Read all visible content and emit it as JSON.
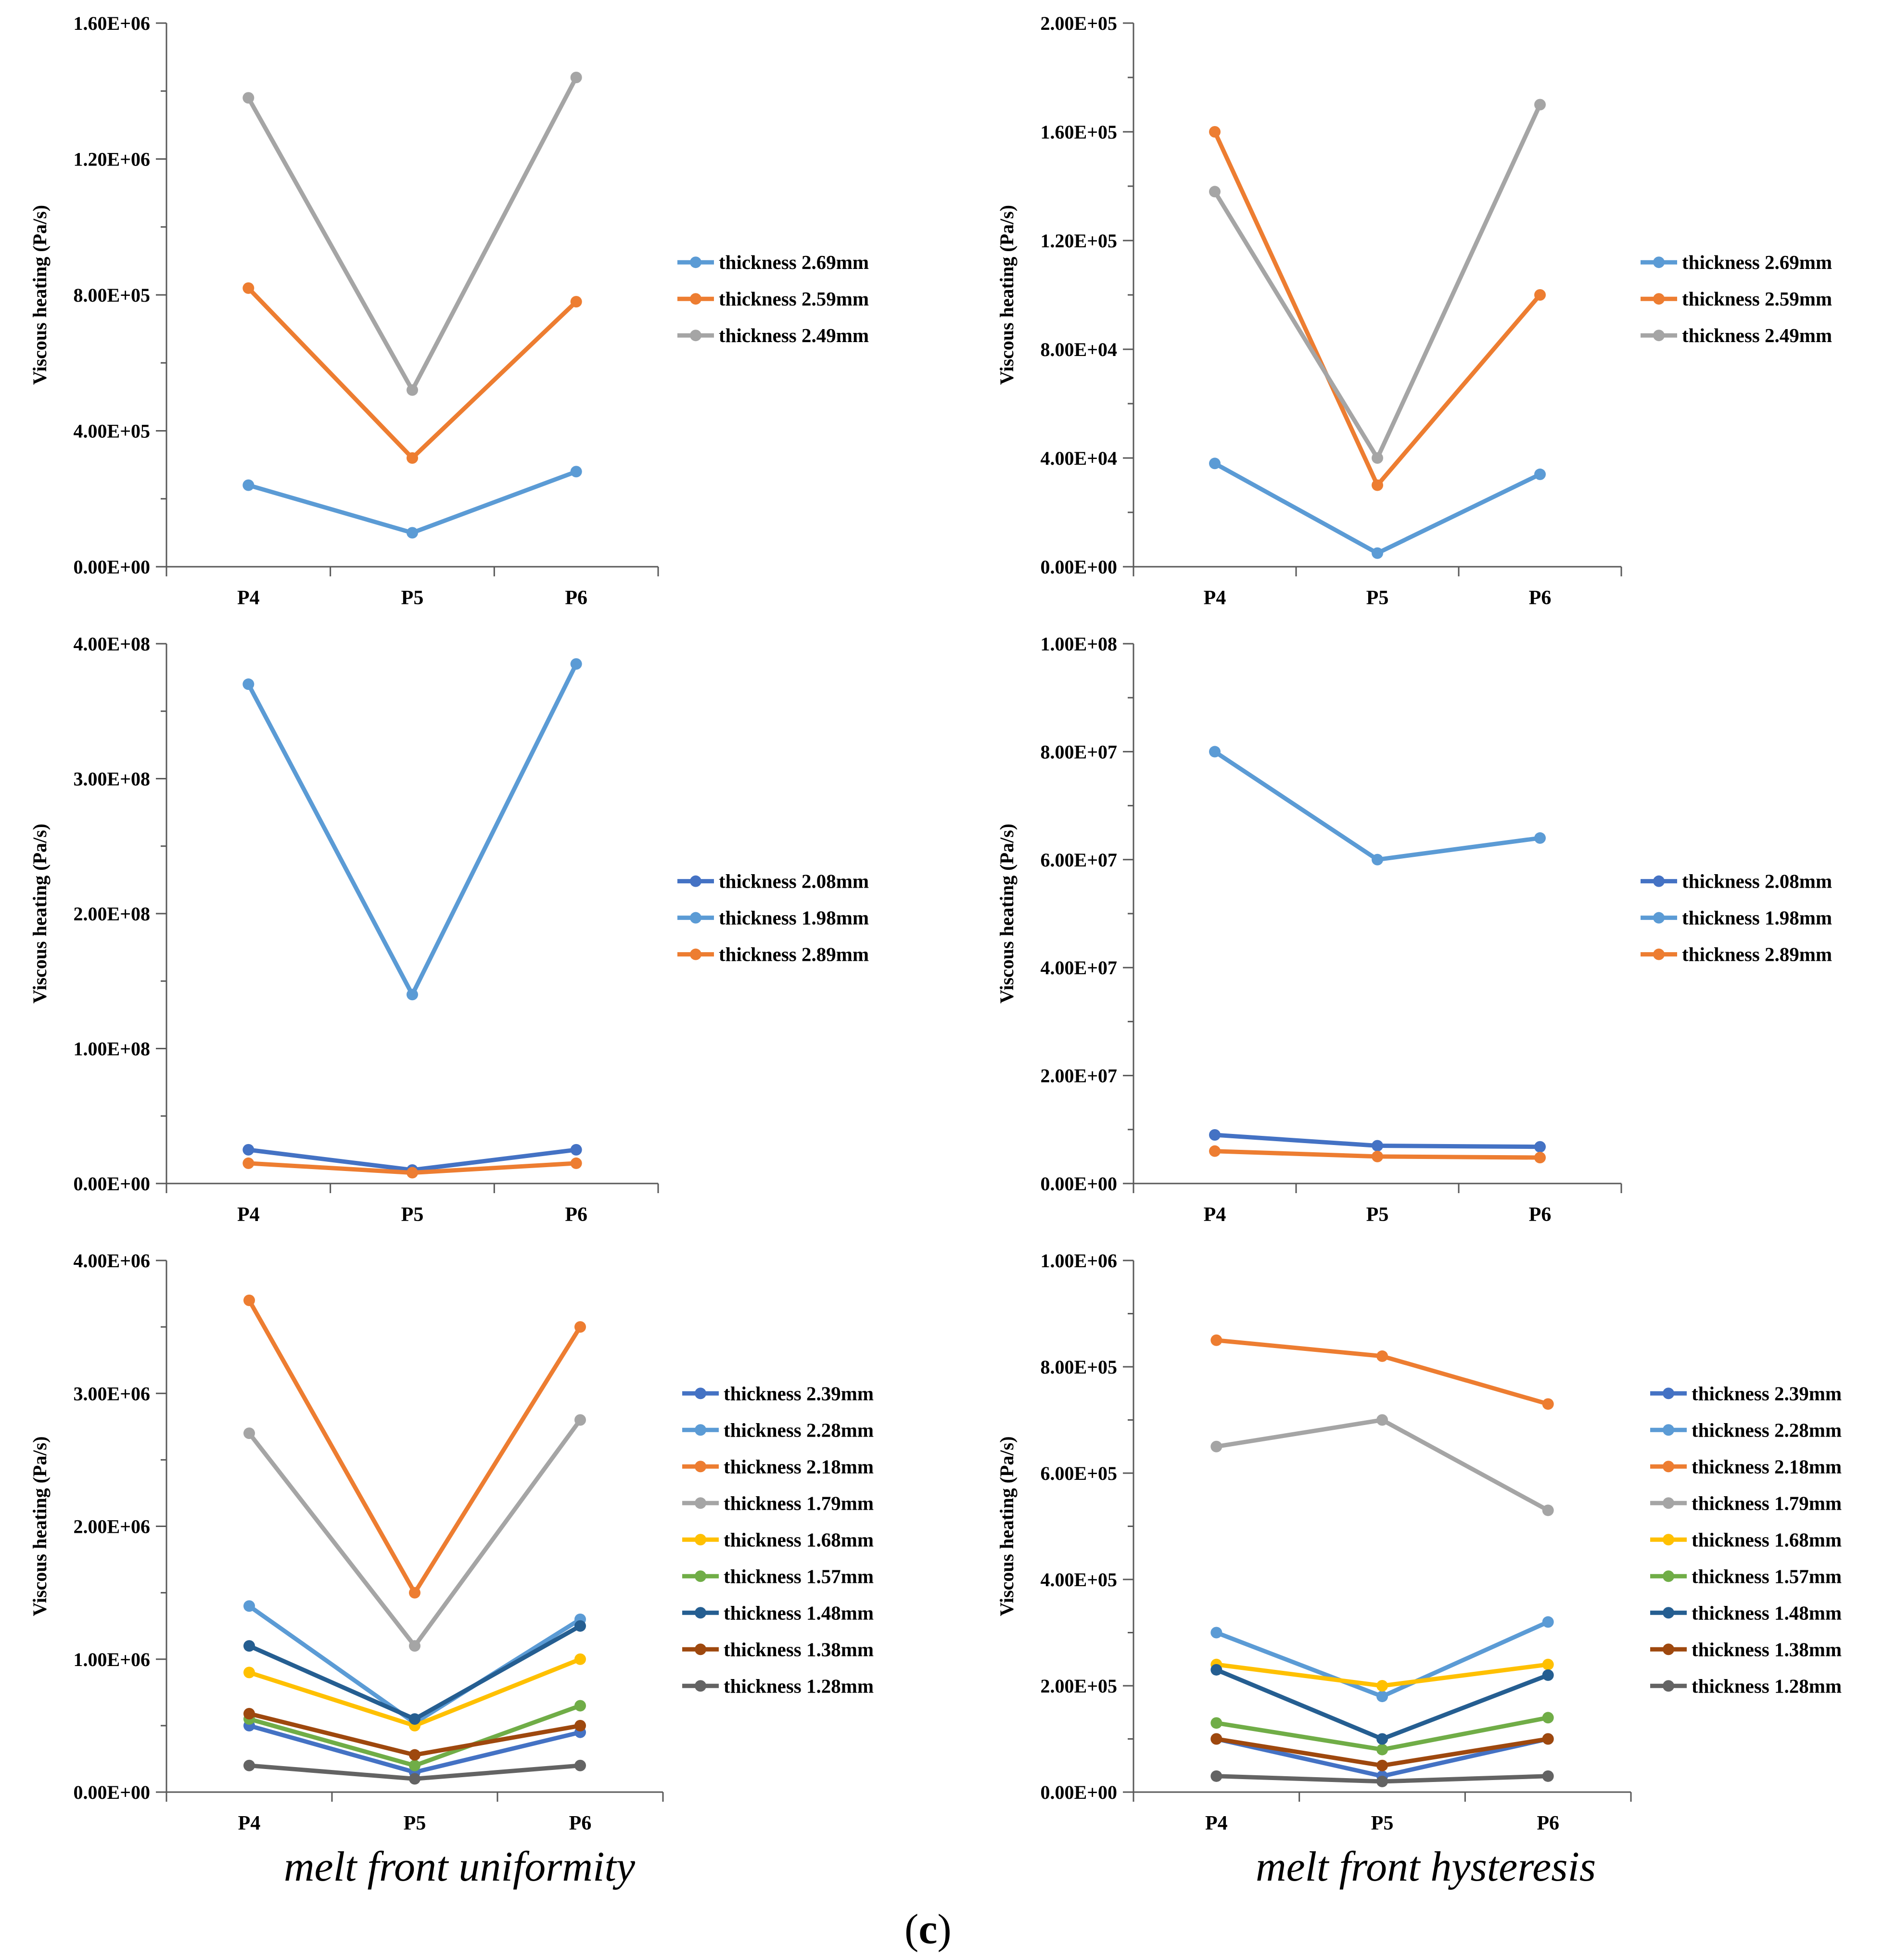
{
  "figure_label": {
    "open": "(",
    "letter": "c",
    "close": ")"
  },
  "captions": {
    "left": "melt front uniformity",
    "right": "melt front hysteresis"
  },
  "colors": {
    "2.69": "#5b9bd5",
    "2.59": "#ed7d31",
    "2.49": "#a5a5a5",
    "2.08": "#4472c4",
    "1.98": "#5b9bd5",
    "2.89": "#ed7d31",
    "2.39": "#4472c4",
    "2.28": "#5b9bd5",
    "2.18": "#ed7d31",
    "1.79": "#a5a5a5",
    "1.68": "#ffc000",
    "1.57": "#70ad47",
    "1.48": "#255e91",
    "1.38": "#9e480e",
    "1.28": "#636363"
  },
  "chart_data": [
    {
      "type": "line",
      "panel": "top-left",
      "ylabel": "Viscous heating (Pa/s)",
      "categories": [
        "P4",
        "P5",
        "P6"
      ],
      "ylim": [
        0,
        1600000
      ],
      "yticks": [
        "0.00E+00",
        "4.00E+05",
        "8.00E+05",
        "1.20E+06",
        "1.60E+06"
      ],
      "series": [
        {
          "name": "thickness 2.69mm",
          "color": "#5b9bd5",
          "values": [
            240000,
            100000,
            280000
          ]
        },
        {
          "name": "thickness 2.59mm",
          "color": "#ed7d31",
          "values": [
            820000,
            320000,
            780000
          ]
        },
        {
          "name": "thickness 2.49mm",
          "color": "#a5a5a5",
          "values": [
            1380000,
            520000,
            1440000
          ]
        }
      ]
    },
    {
      "type": "line",
      "panel": "top-right",
      "ylabel": "Viscous heating (Pa/s)",
      "categories": [
        "P4",
        "P5",
        "P6"
      ],
      "ylim": [
        0,
        200000
      ],
      "yticks": [
        "0.00E+00",
        "4.00E+04",
        "8.00E+04",
        "1.20E+05",
        "1.60E+05",
        "2.00E+05"
      ],
      "series": [
        {
          "name": "thickness 2.69mm",
          "color": "#5b9bd5",
          "values": [
            38000,
            5000,
            34000
          ]
        },
        {
          "name": "thickness 2.59mm",
          "color": "#ed7d31",
          "values": [
            160000,
            30000,
            100000
          ]
        },
        {
          "name": "thickness 2.49mm",
          "color": "#a5a5a5",
          "values": [
            138000,
            40000,
            170000
          ]
        }
      ]
    },
    {
      "type": "line",
      "panel": "middle-left",
      "ylabel": "Viscous heating (Pa/s)",
      "categories": [
        "P4",
        "P5",
        "P6"
      ],
      "ylim": [
        0,
        400000000
      ],
      "yticks": [
        "0.00E+00",
        "1.00E+08",
        "2.00E+08",
        "3.00E+08",
        "4.00E+08"
      ],
      "series": [
        {
          "name": "thickness 2.08mm",
          "color": "#4472c4",
          "values": [
            25000000,
            10000000,
            25000000
          ]
        },
        {
          "name": "thickness 1.98mm",
          "color": "#5b9bd5",
          "values": [
            370000000,
            140000000,
            385000000
          ]
        },
        {
          "name": "thickness 2.89mm",
          "color": "#ed7d31",
          "values": [
            15000000,
            8000000,
            15000000
          ]
        }
      ]
    },
    {
      "type": "line",
      "panel": "middle-right",
      "ylabel": "Viscous heating (Pa/s)",
      "categories": [
        "P4",
        "P5",
        "P6"
      ],
      "ylim": [
        0,
        100000000
      ],
      "yticks": [
        "0.00E+00",
        "2.00E+07",
        "4.00E+07",
        "6.00E+07",
        "8.00E+07",
        "1.00E+08"
      ],
      "series": [
        {
          "name": "thickness 2.08mm",
          "color": "#4472c4",
          "values": [
            9000000,
            7000000,
            6800000
          ]
        },
        {
          "name": "thickness 1.98mm",
          "color": "#5b9bd5",
          "values": [
            80000000,
            60000000,
            64000000
          ]
        },
        {
          "name": "thickness 2.89mm",
          "color": "#ed7d31",
          "values": [
            6000000,
            5000000,
            4800000
          ]
        }
      ]
    },
    {
      "type": "line",
      "panel": "bottom-left",
      "ylabel": "Viscous heating (Pa/s)",
      "categories": [
        "P4",
        "P5",
        "P6"
      ],
      "ylim": [
        0,
        4000000
      ],
      "yticks": [
        "0.00E+00",
        "1.00E+06",
        "2.00E+06",
        "3.00E+06",
        "4.00E+06"
      ],
      "series": [
        {
          "name": "thickness 2.39mm",
          "color": "#4472c4",
          "values": [
            500000,
            150000,
            450000
          ]
        },
        {
          "name": "thickness 2.28mm",
          "color": "#5b9bd5",
          "values": [
            1400000,
            520000,
            1300000
          ]
        },
        {
          "name": "thickness 2.18mm",
          "color": "#ed7d31",
          "values": [
            3700000,
            1500000,
            3500000
          ]
        },
        {
          "name": "thickness 1.79mm",
          "color": "#a5a5a5",
          "values": [
            2700000,
            1100000,
            2800000
          ]
        },
        {
          "name": "thickness 1.68mm",
          "color": "#ffc000",
          "values": [
            900000,
            500000,
            1000000
          ]
        },
        {
          "name": "thickness 1.57mm",
          "color": "#70ad47",
          "values": [
            550000,
            200000,
            650000
          ]
        },
        {
          "name": "thickness 1.48mm",
          "color": "#255e91",
          "values": [
            1100000,
            550000,
            1250000
          ]
        },
        {
          "name": "thickness 1.38mm",
          "color": "#9e480e",
          "values": [
            590000,
            280000,
            500000
          ]
        },
        {
          "name": "thickness 1.28mm",
          "color": "#636363",
          "values": [
            200000,
            100000,
            200000
          ]
        }
      ]
    },
    {
      "type": "line",
      "panel": "bottom-right",
      "ylabel": "Viscous heating (Pa/s)",
      "categories": [
        "P4",
        "P5",
        "P6"
      ],
      "ylim": [
        0,
        1000000
      ],
      "yticks": [
        "0.00E+00",
        "2.00E+05",
        "4.00E+05",
        "6.00E+05",
        "8.00E+05",
        "1.00E+06"
      ],
      "series": [
        {
          "name": "thickness 2.39mm",
          "color": "#4472c4",
          "values": [
            100000,
            30000,
            100000
          ]
        },
        {
          "name": "thickness 2.28mm",
          "color": "#5b9bd5",
          "values": [
            300000,
            180000,
            320000
          ]
        },
        {
          "name": "thickness 2.18mm",
          "color": "#ed7d31",
          "values": [
            850000,
            820000,
            730000
          ]
        },
        {
          "name": "thickness 1.79mm",
          "color": "#a5a5a5",
          "values": [
            650000,
            700000,
            530000
          ]
        },
        {
          "name": "thickness 1.68mm",
          "color": "#ffc000",
          "values": [
            240000,
            200000,
            240000
          ]
        },
        {
          "name": "thickness 1.57mm",
          "color": "#70ad47",
          "values": [
            130000,
            80000,
            140000
          ]
        },
        {
          "name": "thickness 1.48mm",
          "color": "#255e91",
          "values": [
            230000,
            100000,
            220000
          ]
        },
        {
          "name": "thickness 1.38mm",
          "color": "#9e480e",
          "values": [
            100000,
            50000,
            100000
          ]
        },
        {
          "name": "thickness 1.28mm",
          "color": "#636363",
          "values": [
            30000,
            20000,
            30000
          ]
        }
      ]
    }
  ]
}
